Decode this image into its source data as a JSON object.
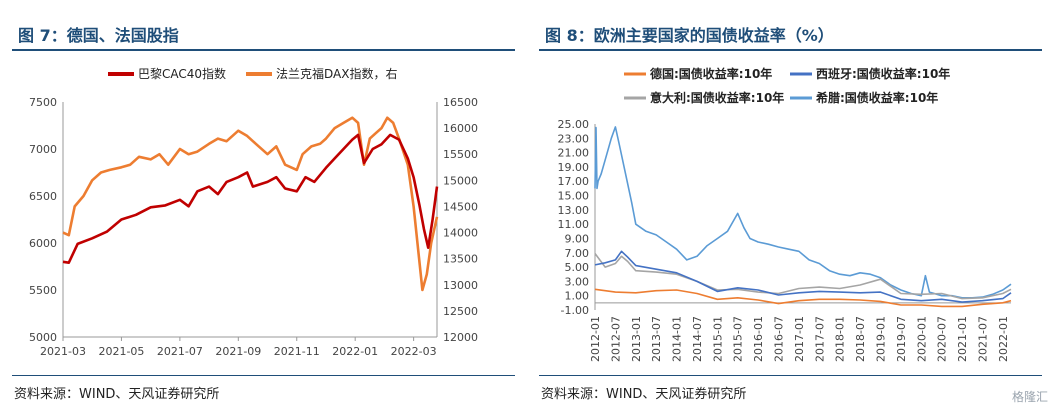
{
  "left": {
    "title": "图 7：德国、法国股指",
    "source": "资料来源：WIND、天风证券研究所",
    "chart_data": {
      "type": "line",
      "legend_position": "top",
      "x_ticks": [
        "2021-03",
        "2021-05",
        "2021-07",
        "2021-09",
        "2021-11",
        "2022-01",
        "2022-03"
      ],
      "x_range": [
        0,
        12.8
      ],
      "y_left": {
        "ticks": [
          5000,
          5500,
          6000,
          6500,
          7000,
          7500
        ],
        "range": [
          5000,
          7500
        ]
      },
      "y_right": {
        "ticks": [
          12000,
          12500,
          13000,
          13500,
          14000,
          14500,
          15000,
          15500,
          16000,
          16500
        ],
        "range": [
          12000,
          16500
        ]
      },
      "series": [
        {
          "name": "巴黎CAC40指数",
          "color": "#c00000",
          "axis": "left",
          "points": [
            [
              0,
              5800
            ],
            [
              0.2,
              5790
            ],
            [
              0.5,
              5990
            ],
            [
              1,
              6050
            ],
            [
              1.5,
              6120
            ],
            [
              2,
              6250
            ],
            [
              2.5,
              6300
            ],
            [
              3,
              6380
            ],
            [
              3.5,
              6400
            ],
            [
              4,
              6460
            ],
            [
              4.3,
              6390
            ],
            [
              4.6,
              6550
            ],
            [
              5,
              6600
            ],
            [
              5.3,
              6520
            ],
            [
              5.6,
              6650
            ],
            [
              6,
              6700
            ],
            [
              6.3,
              6750
            ],
            [
              6.5,
              6600
            ],
            [
              7,
              6650
            ],
            [
              7.3,
              6700
            ],
            [
              7.6,
              6580
            ],
            [
              8,
              6550
            ],
            [
              8.3,
              6700
            ],
            [
              8.6,
              6650
            ],
            [
              9,
              6800
            ],
            [
              9.3,
              6900
            ],
            [
              9.6,
              7000
            ],
            [
              9.9,
              7100
            ],
            [
              10.1,
              7150
            ],
            [
              10.3,
              6850
            ],
            [
              10.6,
              7000
            ],
            [
              10.9,
              7050
            ],
            [
              11.2,
              7150
            ],
            [
              11.5,
              7100
            ],
            [
              11.8,
              6900
            ],
            [
              12,
              6700
            ],
            [
              12.2,
              6400
            ],
            [
              12.35,
              6150
            ],
            [
              12.5,
              5950
            ],
            [
              12.65,
              6250
            ],
            [
              12.8,
              6600
            ]
          ]
        },
        {
          "name": "法兰克福DAX指数，右",
          "color": "#ed7d31",
          "axis": "right",
          "points": [
            [
              0,
              14000
            ],
            [
              0.2,
              13950
            ],
            [
              0.4,
              14500
            ],
            [
              0.7,
              14700
            ],
            [
              1,
              15000
            ],
            [
              1.3,
              15150
            ],
            [
              1.6,
              15200
            ],
            [
              2,
              15250
            ],
            [
              2.3,
              15300
            ],
            [
              2.6,
              15450
            ],
            [
              3,
              15400
            ],
            [
              3.3,
              15500
            ],
            [
              3.6,
              15300
            ],
            [
              4,
              15600
            ],
            [
              4.3,
              15500
            ],
            [
              4.6,
              15550
            ],
            [
              5,
              15700
            ],
            [
              5.3,
              15800
            ],
            [
              5.6,
              15750
            ],
            [
              6,
              15950
            ],
            [
              6.3,
              15850
            ],
            [
              6.6,
              15700
            ],
            [
              7,
              15500
            ],
            [
              7.3,
              15650
            ],
            [
              7.6,
              15300
            ],
            [
              8,
              15200
            ],
            [
              8.2,
              15500
            ],
            [
              8.5,
              15650
            ],
            [
              8.8,
              15700
            ],
            [
              9,
              15800
            ],
            [
              9.3,
              16000
            ],
            [
              9.6,
              16100
            ],
            [
              9.9,
              16200
            ],
            [
              10.1,
              16100
            ],
            [
              10.3,
              15300
            ],
            [
              10.5,
              15800
            ],
            [
              10.7,
              15900
            ],
            [
              10.9,
              16000
            ],
            [
              11.1,
              16200
            ],
            [
              11.3,
              16100
            ],
            [
              11.5,
              15800
            ],
            [
              11.8,
              15300
            ],
            [
              12,
              14500
            ],
            [
              12.15,
              13700
            ],
            [
              12.3,
              12900
            ],
            [
              12.45,
              13200
            ],
            [
              12.6,
              13800
            ],
            [
              12.8,
              14300
            ]
          ]
        }
      ]
    }
  },
  "right": {
    "title": "图 8：欧洲主要国家的国债收益率（%）",
    "source": "资料来源：WIND、天风证券研究所",
    "watermark": "格隆汇",
    "chart_data": {
      "type": "line",
      "legend_position": "top",
      "x_ticks": [
        "2012-01",
        "2012-07",
        "2013-01",
        "2013-07",
        "2014-01",
        "2014-07",
        "2015-01",
        "2015-07",
        "2016-01",
        "2016-07",
        "2017-01",
        "2017-07",
        "2018-01",
        "2018-07",
        "2019-01",
        "2019-07",
        "2020-01",
        "2020-07",
        "2021-01",
        "2021-07",
        "2022-01"
      ],
      "x_range": [
        0,
        20.4
      ],
      "y": {
        "ticks": [
          "-1.00",
          "1.00",
          "3.00",
          "5.00",
          "7.00",
          "9.00",
          "11.00",
          "13.00",
          "15.00",
          "17.00",
          "19.00",
          "21.00",
          "23.00",
          "25.00"
        ],
        "range": [
          -1,
          25
        ]
      },
      "series": [
        {
          "name": "德国:国债收益率:10年",
          "color": "#ed7d31",
          "points": [
            [
              0,
              1.9
            ],
            [
              1,
              1.5
            ],
            [
              2,
              1.4
            ],
            [
              3,
              1.7
            ],
            [
              4,
              1.8
            ],
            [
              5,
              1.3
            ],
            [
              6,
              0.5
            ],
            [
              7,
              0.7
            ],
            [
              8,
              0.4
            ],
            [
              9,
              -0.1
            ],
            [
              10,
              0.3
            ],
            [
              11,
              0.5
            ],
            [
              12,
              0.5
            ],
            [
              13,
              0.4
            ],
            [
              14,
              0.2
            ],
            [
              15,
              -0.3
            ],
            [
              16,
              -0.3
            ],
            [
              17,
              -0.5
            ],
            [
              18,
              -0.5
            ],
            [
              19,
              -0.2
            ],
            [
              20,
              0.0
            ],
            [
              20.4,
              0.3
            ]
          ]
        },
        {
          "name": "西班牙:国债收益率:10年",
          "color": "#4472c4",
          "points": [
            [
              0,
              5.3
            ],
            [
              0.5,
              5.6
            ],
            [
              1,
              6.0
            ],
            [
              1.3,
              7.2
            ],
            [
              1.6,
              6.4
            ],
            [
              2,
              5.2
            ],
            [
              3,
              4.7
            ],
            [
              4,
              4.2
            ],
            [
              5,
              3.0
            ],
            [
              6,
              1.6
            ],
            [
              7,
              2.1
            ],
            [
              8,
              1.8
            ],
            [
              9,
              1.1
            ],
            [
              10,
              1.4
            ],
            [
              11,
              1.6
            ],
            [
              12,
              1.5
            ],
            [
              13,
              1.4
            ],
            [
              14,
              1.5
            ],
            [
              15,
              0.5
            ],
            [
              16,
              0.3
            ],
            [
              17,
              0.5
            ],
            [
              18,
              0.1
            ],
            [
              19,
              0.3
            ],
            [
              20,
              0.6
            ],
            [
              20.4,
              1.4
            ]
          ]
        },
        {
          "name": "意大利:国债收益率:10年",
          "color": "#a5a5a5",
          "points": [
            [
              0,
              6.9
            ],
            [
              0.5,
              5.0
            ],
            [
              1,
              5.5
            ],
            [
              1.3,
              6.5
            ],
            [
              1.6,
              5.8
            ],
            [
              2,
              4.5
            ],
            [
              3,
              4.3
            ],
            [
              4,
              4.0
            ],
            [
              5,
              3.0
            ],
            [
              6,
              1.8
            ],
            [
              7,
              1.9
            ],
            [
              8,
              1.5
            ],
            [
              9,
              1.3
            ],
            [
              10,
              2.0
            ],
            [
              11,
              2.2
            ],
            [
              12,
              2.0
            ],
            [
              13,
              2.5
            ],
            [
              14,
              3.3
            ],
            [
              15,
              1.3
            ],
            [
              16,
              1.2
            ],
            [
              17,
              1.3
            ],
            [
              18,
              0.6
            ],
            [
              19,
              0.7
            ],
            [
              20,
              1.3
            ],
            [
              20.4,
              1.9
            ]
          ]
        },
        {
          "name": "希腊:国债收益率:10年",
          "color": "#5b9bd5",
          "points": [
            [
              0,
              16
            ],
            [
              0.05,
              24.5
            ],
            [
              0.1,
              16
            ],
            [
              0.15,
              17
            ],
            [
              0.3,
              18
            ],
            [
              0.5,
              20
            ],
            [
              0.8,
              23
            ],
            [
              1,
              24.6
            ],
            [
              1.2,
              22
            ],
            [
              1.5,
              18
            ],
            [
              1.8,
              14
            ],
            [
              2,
              11
            ],
            [
              2.5,
              10
            ],
            [
              3,
              9.5
            ],
            [
              3.5,
              8.5
            ],
            [
              4,
              7.5
            ],
            [
              4.5,
              6
            ],
            [
              5,
              6.5
            ],
            [
              5.5,
              8
            ],
            [
              6,
              9
            ],
            [
              6.5,
              10
            ],
            [
              7,
              12.5
            ],
            [
              7.3,
              10.5
            ],
            [
              7.6,
              9
            ],
            [
              8,
              8.5
            ],
            [
              8.5,
              8.2
            ],
            [
              9,
              7.8
            ],
            [
              9.5,
              7.5
            ],
            [
              10,
              7.2
            ],
            [
              10.5,
              6
            ],
            [
              11,
              5.5
            ],
            [
              11.5,
              4.5
            ],
            [
              12,
              4
            ],
            [
              12.5,
              3.8
            ],
            [
              13,
              4.2
            ],
            [
              13.5,
              4
            ],
            [
              14,
              3.5
            ],
            [
              14.5,
              2.5
            ],
            [
              15,
              1.8
            ],
            [
              15.5,
              1.3
            ],
            [
              16,
              1.0
            ],
            [
              16.2,
              3.8
            ],
            [
              16.4,
              1.5
            ],
            [
              17,
              1.0
            ],
            [
              17.5,
              1.0
            ],
            [
              18,
              0.7
            ],
            [
              18.5,
              0.7
            ],
            [
              19,
              0.8
            ],
            [
              19.5,
              1.2
            ],
            [
              20,
              1.8
            ],
            [
              20.4,
              2.6
            ]
          ]
        }
      ]
    }
  }
}
